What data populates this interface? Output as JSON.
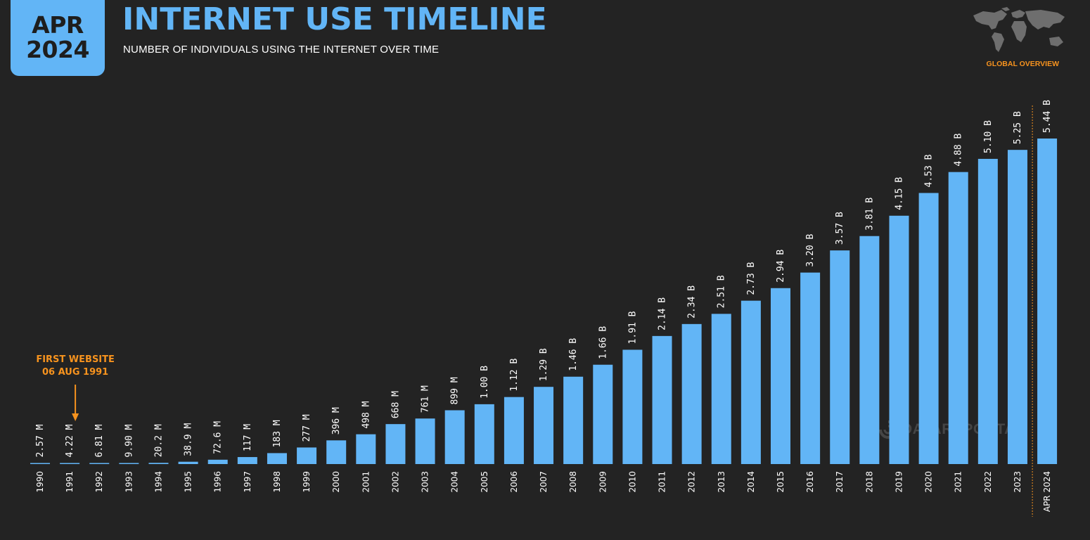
{
  "header": {
    "badge_month": "APR",
    "badge_year": "2024",
    "title": "INTERNET USE TIMELINE",
    "subtitle": "NUMBER OF INDIVIDUALS USING THE INTERNET OVER TIME",
    "section": "GLOBAL OVERVIEW",
    "watermark": "DATAREPORTAL"
  },
  "colors": {
    "background": "#232323",
    "bar": "#62b5f6",
    "accent": "#f7931e"
  },
  "icons": [
    "world-map-icon",
    "datareportal-logo-icon"
  ],
  "chart_data": {
    "type": "bar",
    "title": "INTERNET USE TIMELINE",
    "subtitle": "NUMBER OF INDIVIDUALS USING THE INTERNET OVER TIME",
    "categories": [
      "1990",
      "1991",
      "1992",
      "1993",
      "1994",
      "1995",
      "1996",
      "1997",
      "1998",
      "1999",
      "2000",
      "2001",
      "2002",
      "2003",
      "2004",
      "2005",
      "2006",
      "2007",
      "2008",
      "2009",
      "2010",
      "2011",
      "2012",
      "2013",
      "2014",
      "2015",
      "2016",
      "2017",
      "2018",
      "2019",
      "2020",
      "2021",
      "2022",
      "2023",
      "APR 2024"
    ],
    "values": [
      0.00257,
      0.00422,
      0.00681,
      0.0099,
      0.0202,
      0.0389,
      0.0726,
      0.117,
      0.183,
      0.277,
      0.396,
      0.498,
      0.668,
      0.761,
      0.899,
      1.0,
      1.12,
      1.29,
      1.46,
      1.66,
      1.91,
      2.14,
      2.34,
      2.51,
      2.73,
      2.94,
      3.2,
      3.57,
      3.81,
      4.15,
      4.53,
      4.88,
      5.1,
      5.25,
      5.44
    ],
    "value_unit": "billions",
    "data_labels": [
      "2.57 M",
      "4.22 M",
      "6.81 M",
      "9.90 M",
      "20.2 M",
      "38.9 M",
      "72.6 M",
      "117 M",
      "183 M",
      "277 M",
      "396 M",
      "498 M",
      "668 M",
      "761 M",
      "899 M",
      "1.00 B",
      "1.12 B",
      "1.29 B",
      "1.46 B",
      "1.66 B",
      "1.91 B",
      "2.14 B",
      "2.34 B",
      "2.51 B",
      "2.73 B",
      "2.94 B",
      "3.20 B",
      "3.57 B",
      "3.81 B",
      "4.15 B",
      "4.53 B",
      "4.88 B",
      "5.10 B",
      "5.25 B",
      "5.44 B"
    ],
    "xlabel": "",
    "ylabel": "",
    "ylim": [
      0,
      5.44
    ],
    "grid": false,
    "legend": "none",
    "annotation": {
      "category": "1991",
      "line1": "FIRST WEBSITE",
      "line2": "06 AUG 1991"
    }
  }
}
